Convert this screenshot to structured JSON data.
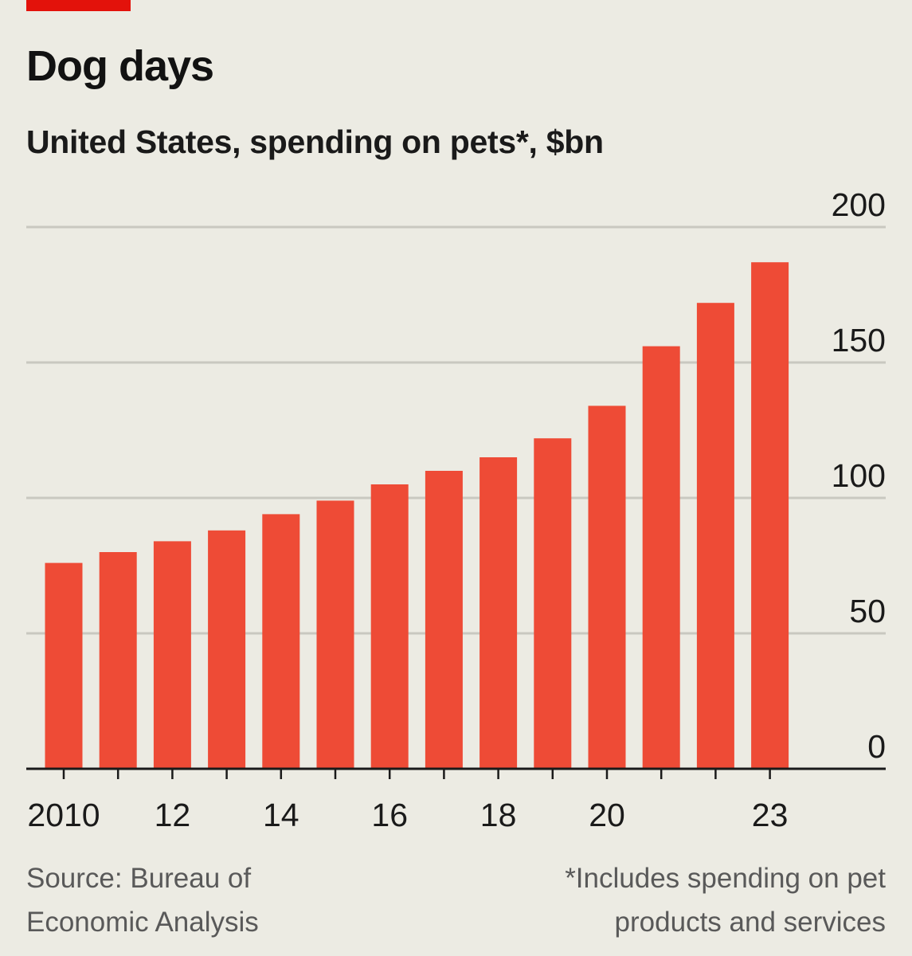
{
  "title": "Dog days",
  "subtitle": "United States, spending on pets*, $bn",
  "source": "Source: Bureau of Economic Analysis",
  "footnote": "*Includes spending on pet products and services",
  "colors": {
    "background": "#ecebe3",
    "bar": "#ee4b36",
    "brand": "#e3120b",
    "grid": "#c9c8c0",
    "axis": "#1a1a1a"
  },
  "chart_data": {
    "type": "bar",
    "categories": [
      "2010",
      "2011",
      "2012",
      "2013",
      "2014",
      "2015",
      "2016",
      "2017",
      "2018",
      "2019",
      "2020",
      "2021",
      "2022",
      "2023"
    ],
    "values": [
      76,
      80,
      84,
      88,
      94,
      99,
      105,
      110,
      115,
      122,
      134,
      156,
      172,
      187
    ],
    "x_tick_labels": [
      "2010",
      "",
      "12",
      "",
      "14",
      "",
      "16",
      "",
      "18",
      "",
      "20",
      "",
      "",
      "23"
    ],
    "y_ticks": [
      0,
      50,
      100,
      150,
      200
    ],
    "ylim": [
      0,
      200
    ],
    "grid": true,
    "y_axis_side": "right"
  }
}
